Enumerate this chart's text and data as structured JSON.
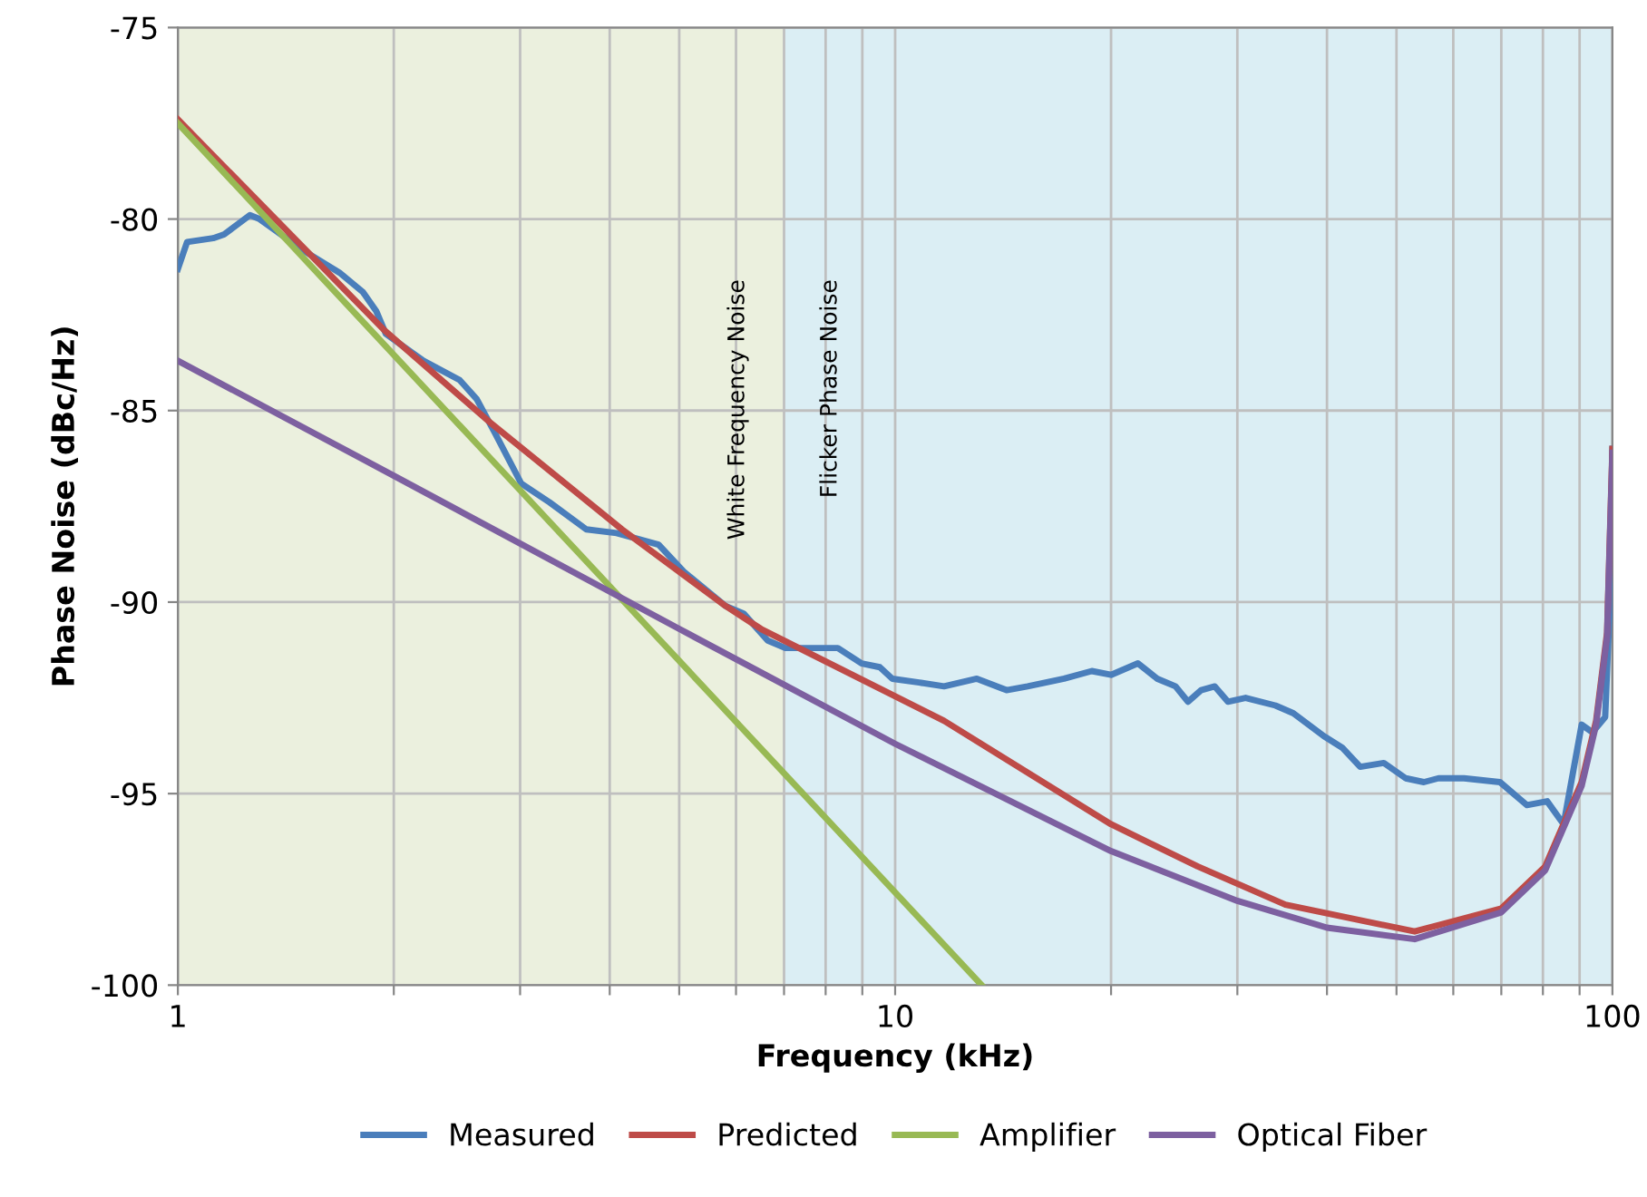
{
  "chart_data": {
    "type": "line",
    "xlabel": "Frequency (kHz)",
    "ylabel": "Phase Noise (dBc/Hz)",
    "log": "x",
    "xlim": [
      1,
      100
    ],
    "ylim": [
      -100,
      -75
    ],
    "xticks": [
      1,
      {
        "value": 2,
        "label": null
      },
      {
        "value": 3,
        "label": null
      },
      {
        "value": 4,
        "label": null
      },
      {
        "value": 5,
        "label": null
      },
      {
        "value": 6,
        "label": null
      },
      {
        "value": 7,
        "label": null
      },
      {
        "value": 8,
        "label": null
      },
      {
        "value": 9,
        "label": null
      },
      10,
      {
        "value": 20,
        "label": null
      },
      {
        "value": 30,
        "label": null
      },
      {
        "value": 40,
        "label": null
      },
      {
        "value": 50,
        "label": null
      },
      {
        "value": 60,
        "label": null
      },
      {
        "value": 70,
        "label": null
      },
      {
        "value": 80,
        "label": null
      },
      {
        "value": 90,
        "label": null
      },
      100
    ],
    "yticks": [
      -100,
      -95,
      -90,
      -85,
      -80,
      -75
    ],
    "grid": true,
    "legend": "bottom",
    "line_style": "solid",
    "marker": "none",
    "bands": [
      {
        "axis": "x",
        "from": 1,
        "to": 7,
        "label": "White Frequency Noise",
        "color": "#ebf0de"
      },
      {
        "axis": "x",
        "from": 7,
        "to": 100,
        "label": "Flicker Phase Noise",
        "color": "#dbeef4"
      }
    ],
    "series": [
      {
        "name": "Measured",
        "color": "#4a7ebb",
        "x": [
          1.0,
          1.03,
          1.12,
          1.16,
          1.26,
          1.3,
          1.49,
          1.68,
          1.81,
          1.89,
          1.95,
          2.2,
          2.47,
          2.61,
          2.77,
          3.01,
          3.3,
          3.71,
          4.09,
          4.68,
          5.07,
          5.8,
          6.15,
          6.64,
          7.03,
          7.45,
          7.9,
          8.32,
          8.98,
          9.52,
          9.91,
          10.8,
          11.7,
          13.0,
          14.3,
          15.3,
          17.2,
          18.8,
          20.0,
          21.8,
          23.2,
          24.6,
          25.6,
          26.7,
          27.9,
          29.1,
          30.8,
          33.9,
          35.9,
          39.6,
          42.0,
          44.5,
          48.0,
          51.5,
          54.6,
          57.2,
          62.1,
          69.7,
          76.0,
          81.1,
          85.5,
          90.6,
          93.8,
          97.7,
          99.5,
          100
        ],
        "values": [
          -81.3,
          -80.6,
          -80.5,
          -80.4,
          -79.9,
          -80.0,
          -80.8,
          -81.4,
          -81.9,
          -82.4,
          -83.0,
          -83.7,
          -84.2,
          -84.7,
          -85.6,
          -86.9,
          -87.4,
          -88.1,
          -88.2,
          -88.5,
          -89.2,
          -90.1,
          -90.3,
          -91.0,
          -91.2,
          -91.2,
          -91.2,
          -91.2,
          -91.6,
          -91.7,
          -92.0,
          -92.1,
          -92.2,
          -92.0,
          -92.3,
          -92.2,
          -92.0,
          -91.8,
          -91.9,
          -91.6,
          -92.0,
          -92.2,
          -92.6,
          -92.3,
          -92.2,
          -92.6,
          -92.5,
          -92.7,
          -92.9,
          -93.5,
          -93.8,
          -94.3,
          -94.2,
          -94.6,
          -94.7,
          -94.6,
          -94.6,
          -94.7,
          -95.3,
          -95.2,
          -95.8,
          -93.2,
          -93.4,
          -93.0,
          -89.4,
          -86.0
        ]
      },
      {
        "name": "Predicted",
        "color": "#be4b48",
        "x": [
          1,
          1.94,
          2.72,
          4.16,
          5.8,
          6.5,
          11.7,
          20,
          26.4,
          35,
          53,
          70,
          80.6,
          90.6,
          94.9,
          98.3,
          100
        ],
        "values": [
          -77.4,
          -82.9,
          -85.3,
          -88.1,
          -90.1,
          -90.7,
          -93.1,
          -95.8,
          -96.9,
          -97.9,
          -98.6,
          -98.0,
          -96.9,
          -94.7,
          -93.1,
          -90.8,
          -86.0
        ]
      },
      {
        "name": "Amplifier",
        "color": "#98b954",
        "x": [
          1,
          13.2
        ],
        "values": [
          -77.5,
          -100
        ]
      },
      {
        "name": "Optical Fiber",
        "color": "#7d60a0",
        "x": [
          1,
          2,
          5,
          10,
          20,
          30,
          40,
          53,
          70,
          80.6,
          90.6,
          94.9,
          98.3,
          100
        ],
        "values": [
          -83.7,
          -86.7,
          -90.7,
          -93.7,
          -96.5,
          -97.8,
          -98.5,
          -98.8,
          -98.1,
          -97.0,
          -94.8,
          -93.2,
          -90.9,
          -86.1
        ]
      }
    ]
  }
}
